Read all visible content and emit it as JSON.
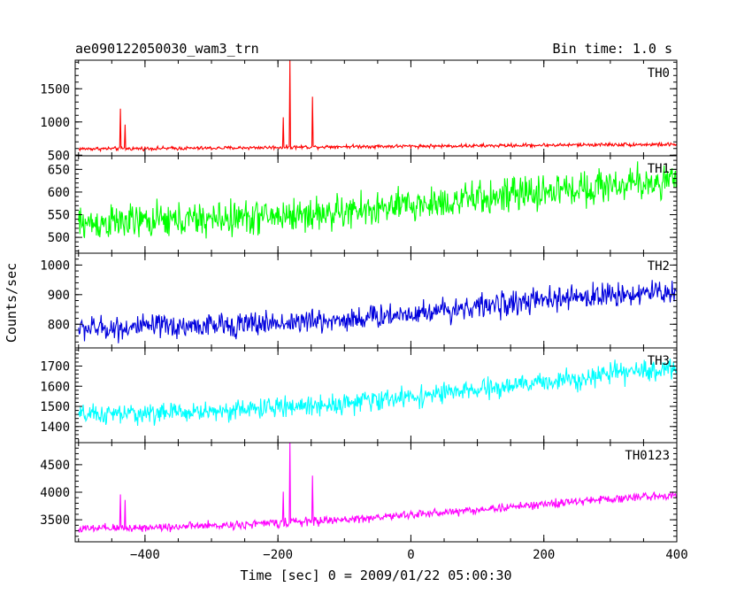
{
  "header": {
    "title": "ae090122050030_wam3_trn",
    "bin_time": "Bin time: 1.0 s"
  },
  "axes": {
    "xlabel": "Time [sec] 0 = 2009/01/22 05:00:30",
    "ylabel": "Counts/sec"
  },
  "chart_data": {
    "type": "line",
    "x_range": [
      -505,
      400
    ],
    "x_ticks": [
      -400,
      -200,
      0,
      200,
      400
    ],
    "x_tick_labels": [
      "−400",
      "−200",
      "0",
      "200",
      "400"
    ],
    "grid": false,
    "panels": [
      {
        "name": "TH0",
        "color": "#ff0000",
        "ylim": [
          490,
          1930
        ],
        "yticks": [
          500,
          1000,
          1500
        ],
        "baseline": {
          "x": [
            -500,
            -300,
            -100,
            100,
            300,
            400
          ],
          "y": [
            595,
            605,
            630,
            640,
            660,
            660
          ]
        },
        "noise": 30,
        "spikes": [
          {
            "x": -437,
            "y": 1200
          },
          {
            "x": -430,
            "y": 960
          },
          {
            "x": -192,
            "y": 1070
          },
          {
            "x": -182,
            "y": 1930
          },
          {
            "x": -148,
            "y": 1380
          }
        ]
      },
      {
        "name": "TH1",
        "color": "#00ff00",
        "ylim": [
          465,
          680
        ],
        "yticks": [
          500,
          550,
          600,
          650
        ],
        "baseline": {
          "x": [
            -500,
            -300,
            -100,
            100,
            300,
            400
          ],
          "y": [
            530,
            540,
            555,
            585,
            615,
            625
          ]
        },
        "noise": 42,
        "spikes": []
      },
      {
        "name": "TH2",
        "color": "#0000dd",
        "ylim": [
          720,
          1040
        ],
        "yticks": [
          800,
          900,
          1000
        ],
        "baseline": {
          "x": [
            -500,
            -300,
            -100,
            100,
            300,
            400
          ],
          "y": [
            785,
            795,
            815,
            860,
            900,
            910
          ]
        },
        "noise": 45,
        "spikes": []
      },
      {
        "name": "TH3",
        "color": "#00ffff",
        "ylim": [
          1320,
          1790
        ],
        "yticks": [
          1400,
          1500,
          1600,
          1700
        ],
        "baseline": {
          "x": [
            -500,
            -300,
            -100,
            100,
            300,
            400
          ],
          "y": [
            1455,
            1475,
            1515,
            1580,
            1660,
            1690
          ]
        },
        "noise": 55,
        "spikes": []
      },
      {
        "name": "TH0123",
        "color": "#ff00ff",
        "ylim": [
          3100,
          4900
        ],
        "yticks": [
          3500,
          4000,
          4500
        ],
        "baseline": {
          "x": [
            -500,
            -300,
            -100,
            100,
            300,
            400
          ],
          "y": [
            3330,
            3390,
            3500,
            3680,
            3880,
            3950
          ]
        },
        "noise": 85,
        "spikes": [
          {
            "x": -437,
            "y": 3960
          },
          {
            "x": -430,
            "y": 3860
          },
          {
            "x": -192,
            "y": 4010
          },
          {
            "x": -182,
            "y": 4900
          },
          {
            "x": -148,
            "y": 4300
          }
        ]
      }
    ]
  }
}
